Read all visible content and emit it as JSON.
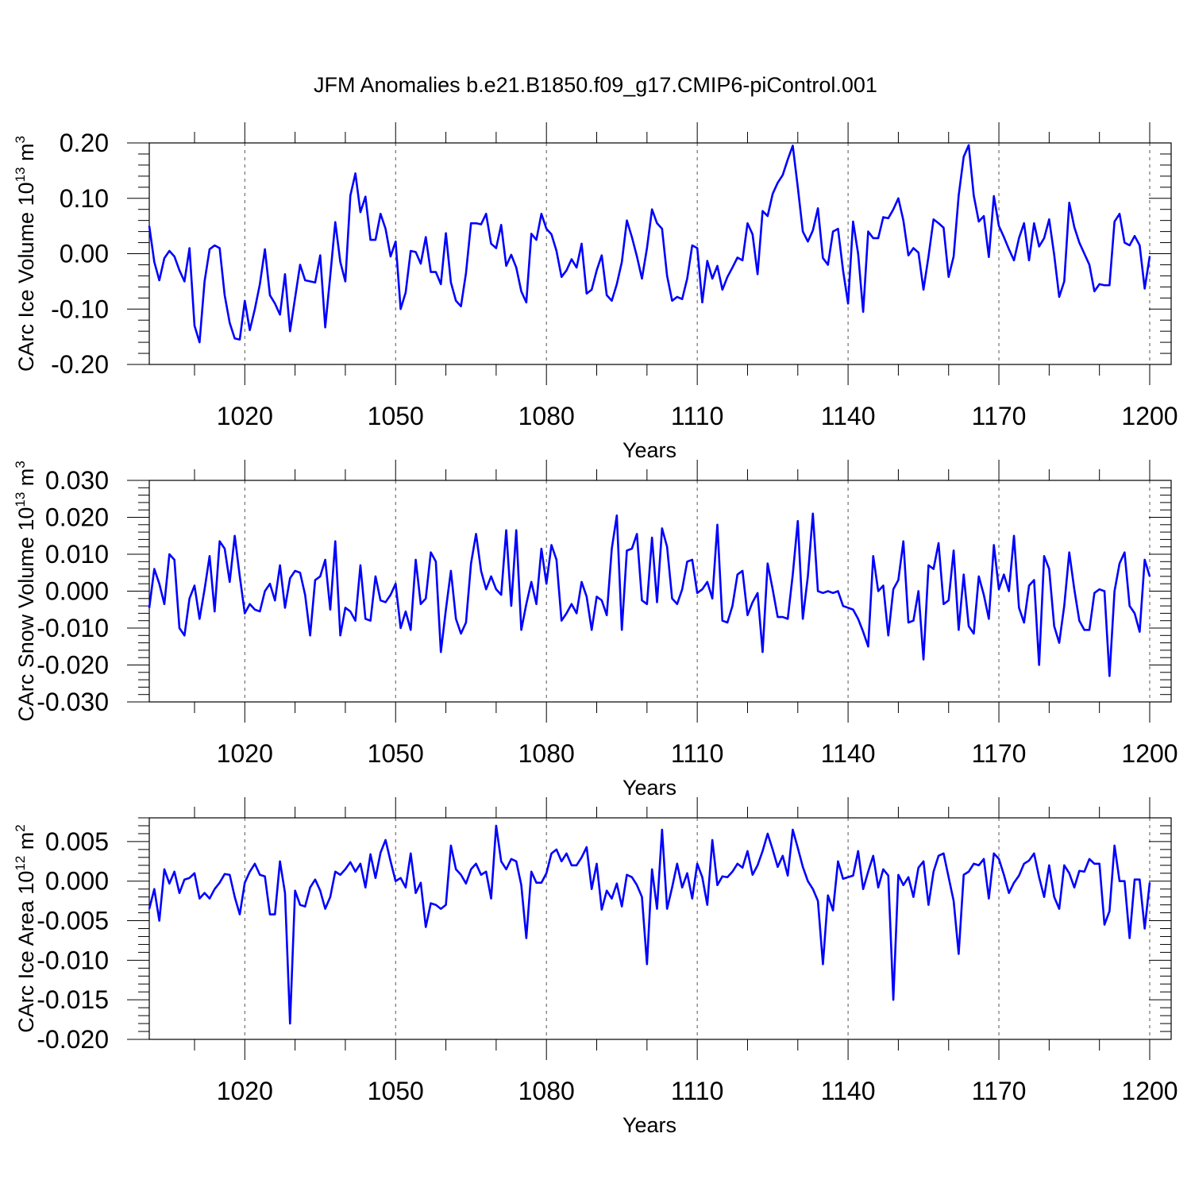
{
  "title": "JFM Anomalies b.e21.B1850.f09_g17.CMIP6-piControl.001",
  "colors": {
    "series": "#0000ff",
    "axis": "#000000",
    "grid": "#555555"
  },
  "chart_data": [
    {
      "type": "line",
      "title": "JFM Anomalies b.e21.B1850.f09_g17.CMIP6-piControl.001",
      "xlabel": "Years",
      "ylabel": "CArc Ice Volume 10",
      "ylabel_exp": "13",
      "ylabel_unit": " m",
      "ylabel_unit_exp": "3",
      "xlim": [
        1001,
        1200
      ],
      "ylim": [
        -0.2,
        0.2
      ],
      "x_ticks": [
        "1020",
        "1050",
        "1080",
        "1110",
        "1140",
        "1170",
        "1200"
      ],
      "y_ticks": [
        "0.20",
        "0.10",
        "0.00",
        "-0.10",
        "-0.20"
      ],
      "grid": "vertical dashed at major x ticks",
      "series": [
        {
          "name": "CArc Ice Volume",
          "start_year": 1001,
          "values": [
            0.05,
            -0.015,
            -0.048,
            -0.008,
            0.005,
            -0.005,
            -0.03,
            -0.05,
            0.01,
            -0.13,
            -0.16,
            -0.05,
            0.008,
            0.015,
            0.01,
            -0.075,
            -0.125,
            -0.153,
            -0.155,
            -0.085,
            -0.138,
            -0.1,
            -0.055,
            0.008,
            -0.075,
            -0.09,
            -0.11,
            -0.037,
            -0.14,
            -0.08,
            -0.02,
            -0.048,
            -0.05,
            -0.052,
            -0.003,
            -0.133,
            -0.04,
            0.057,
            -0.015,
            -0.05,
            0.105,
            0.145,
            0.075,
            0.103,
            0.025,
            0.025,
            0.072,
            0.045,
            -0.005,
            0.022,
            -0.1,
            -0.07,
            0.005,
            0.003,
            -0.018,
            0.03,
            -0.033,
            -0.033,
            -0.055,
            0.037,
            -0.052,
            -0.085,
            -0.095,
            -0.035,
            0.055,
            0.055,
            0.053,
            0.072,
            0.018,
            0.01,
            0.052,
            -0.022,
            -0.002,
            -0.025,
            -0.068,
            -0.088,
            0.036,
            0.025,
            0.072,
            0.045,
            0.035,
            0.005,
            -0.042,
            -0.03,
            -0.01,
            -0.025,
            0.018,
            -0.072,
            -0.065,
            -0.03,
            -0.003,
            -0.075,
            -0.085,
            -0.055,
            -0.015,
            0.06,
            0.03,
            -0.005,
            -0.045,
            0.01,
            0.08,
            0.055,
            0.045,
            -0.04,
            -0.085,
            -0.078,
            -0.082,
            -0.045,
            0.015,
            0.01,
            -0.088,
            -0.013,
            -0.045,
            -0.022,
            -0.065,
            -0.042,
            -0.025,
            -0.007,
            -0.012,
            0.055,
            0.035,
            -0.037,
            0.077,
            0.068,
            0.108,
            0.128,
            0.142,
            0.17,
            0.195,
            0.12,
            0.04,
            0.022,
            0.042,
            0.082,
            -0.008,
            -0.02,
            0.04,
            0.045,
            -0.03,
            -0.09,
            0.058,
            0.0,
            -0.105,
            0.04,
            0.028,
            0.028,
            0.066,
            0.064,
            0.08,
            0.1,
            0.06,
            -0.003,
            0.01,
            0.002,
            -0.065,
            -0.005,
            0.062,
            0.055,
            0.047,
            -0.042,
            -0.005,
            0.105,
            0.175,
            0.196,
            0.105,
            0.058,
            0.068,
            -0.006,
            0.104,
            0.05,
            0.03,
            0.008,
            -0.012,
            0.028,
            0.055,
            -0.012,
            0.055,
            0.013,
            0.028,
            0.062,
            -0.002,
            -0.078,
            -0.05,
            0.092,
            0.048,
            0.02,
            0.0,
            -0.02,
            -0.068,
            -0.055,
            -0.057,
            -0.057,
            0.058,
            0.072,
            0.02,
            0.015,
            0.032,
            0.015,
            -0.063,
            -0.005
          ]
        }
      ]
    },
    {
      "type": "line",
      "xlabel": "Years",
      "ylabel": "CArc Snow Volume 10",
      "ylabel_exp": "13",
      "ylabel_unit": " m",
      "ylabel_unit_exp": "3",
      "xlim": [
        1001,
        1200
      ],
      "ylim": [
        -0.03,
        0.03
      ],
      "x_ticks": [
        "1020",
        "1050",
        "1080",
        "1110",
        "1140",
        "1170",
        "1200"
      ],
      "y_ticks": [
        "0.030",
        "0.020",
        "0.010",
        "0.000",
        "-0.010",
        "-0.020",
        "-0.030"
      ],
      "grid": "vertical dashed at major x ticks",
      "series": [
        {
          "name": "CArc Snow Volume",
          "start_year": 1001,
          "values": [
            -0.0045,
            0.006,
            0.002,
            -0.0035,
            0.01,
            0.0085,
            -0.01,
            -0.012,
            -0.002,
            0.0015,
            -0.0075,
            0.0005,
            0.0095,
            -0.0055,
            0.0135,
            0.0115,
            0.0025,
            0.015,
            0.004,
            -0.006,
            -0.0035,
            -0.005,
            -0.0055,
            0.0,
            0.002,
            -0.0025,
            0.007,
            -0.0045,
            0.0035,
            0.0055,
            0.005,
            -0.001,
            -0.012,
            0.003,
            0.004,
            0.0085,
            -0.005,
            0.0135,
            -0.012,
            -0.0045,
            -0.0055,
            -0.008,
            0.007,
            -0.0075,
            -0.008,
            0.004,
            -0.0025,
            -0.003,
            -0.001,
            0.002,
            -0.01,
            -0.0055,
            -0.0105,
            0.0085,
            -0.0035,
            -0.002,
            0.0105,
            0.008,
            -0.0165,
            -0.005,
            0.0055,
            -0.0075,
            -0.0115,
            -0.0085,
            0.0075,
            0.0155,
            0.0055,
            0.0005,
            0.004,
            0.0005,
            -0.001,
            0.0165,
            -0.004,
            0.0165,
            -0.0105,
            -0.0035,
            0.0025,
            -0.0035,
            0.0115,
            0.002,
            0.0125,
            0.0085,
            -0.008,
            -0.006,
            -0.0035,
            -0.006,
            0.0025,
            -0.0015,
            -0.0105,
            -0.0015,
            -0.0025,
            -0.0065,
            0.0115,
            0.0205,
            -0.0105,
            0.011,
            0.0115,
            0.0155,
            -0.0025,
            -0.0035,
            0.0145,
            -0.003,
            0.017,
            0.012,
            -0.002,
            -0.0035,
            0.0005,
            0.008,
            0.0085,
            -0.0005,
            0.0005,
            0.0025,
            -0.002,
            0.018,
            -0.008,
            -0.0085,
            -0.004,
            0.0045,
            0.0055,
            -0.0065,
            -0.003,
            -0.0005,
            -0.0165,
            0.0075,
            0.0005,
            -0.007,
            -0.007,
            -0.0075,
            0.0045,
            0.019,
            -0.0075,
            0.004,
            0.021,
            0.0,
            -0.0005,
            0.0,
            -0.0005,
            0.0,
            -0.004,
            -0.0045,
            -0.005,
            -0.0075,
            -0.011,
            -0.015,
            0.0095,
            0.0,
            0.0015,
            -0.012,
            0.0005,
            0.003,
            0.0135,
            -0.0085,
            -0.008,
            0.0,
            -0.0185,
            0.007,
            0.006,
            0.013,
            -0.0035,
            -0.0025,
            0.011,
            -0.0105,
            0.0045,
            -0.0095,
            -0.0115,
            0.004,
            -0.001,
            -0.0075,
            0.0125,
            0.0005,
            0.0045,
            0.0,
            0.015,
            -0.0045,
            -0.0085,
            0.0015,
            0.003,
            -0.02,
            0.0095,
            0.006,
            -0.0095,
            -0.014,
            -0.004,
            0.0105,
            0.0005,
            -0.008,
            -0.0105,
            -0.0105,
            -0.0005,
            0.0005,
            0.0,
            -0.023,
            0.0,
            0.0075,
            0.0105,
            -0.004,
            -0.006,
            -0.011,
            0.0085,
            0.004
          ]
        }
      ]
    },
    {
      "type": "line",
      "xlabel": "Years",
      "ylabel": "CArc Ice Area 10",
      "ylabel_exp": "12",
      "ylabel_unit": " m",
      "ylabel_unit_exp": "2",
      "xlim": [
        1001,
        1200
      ],
      "ylim": [
        -0.02,
        0.008
      ],
      "x_ticks": [
        "1020",
        "1050",
        "1080",
        "1110",
        "1140",
        "1170",
        "1200"
      ],
      "y_ticks": [
        "0.005",
        "0.000",
        "-0.005",
        "-0.010",
        "-0.015",
        "-0.020"
      ],
      "grid": "vertical dashed at major x ticks",
      "series": [
        {
          "name": "CArc Ice Area",
          "start_year": 1001,
          "values": [
            -0.0035,
            -0.001,
            -0.005,
            0.0015,
            -0.0003,
            0.0012,
            -0.0015,
            0.0002,
            0.0004,
            0.001,
            -0.0022,
            -0.0015,
            -0.0022,
            -0.001,
            -0.0002,
            0.0009,
            0.0008,
            -0.002,
            -0.0042,
            -0.0002,
            0.0012,
            0.0022,
            0.0008,
            0.0006,
            -0.0042,
            -0.0042,
            0.0025,
            -0.0015,
            -0.018,
            -0.0012,
            -0.003,
            -0.0032,
            -0.0008,
            0.0002,
            -0.0012,
            -0.0035,
            -0.002,
            0.0012,
            0.0008,
            0.0015,
            0.0024,
            0.0012,
            0.0022,
            -0.0008,
            0.0034,
            0.0004,
            0.0036,
            0.0052,
            0.0025,
            0.0,
            0.0004,
            -0.0008,
            0.0035,
            -0.0015,
            -0.0002,
            -0.0058,
            -0.0028,
            -0.003,
            -0.0035,
            -0.003,
            0.0045,
            0.0015,
            0.0008,
            -0.0003,
            0.0015,
            0.0022,
            0.0008,
            0.0012,
            -0.0022,
            0.007,
            0.0025,
            0.0015,
            0.0028,
            0.0025,
            -0.0005,
            -0.0072,
            0.0012,
            -0.0002,
            -0.0002,
            0.001,
            0.0035,
            0.004,
            0.0025,
            0.0035,
            0.002,
            0.002,
            0.003,
            0.0043,
            -0.001,
            0.0022,
            -0.0036,
            -0.0012,
            -0.0022,
            -0.0003,
            -0.0032,
            0.0008,
            0.0005,
            -0.0005,
            -0.002,
            -0.0105,
            0.0015,
            -0.0035,
            0.0065,
            -0.0035,
            -0.0008,
            0.0022,
            -0.0008,
            0.001,
            -0.0022,
            0.0022,
            0.0005,
            -0.003,
            0.0052,
            -0.0005,
            0.0006,
            0.0005,
            0.0012,
            0.0022,
            0.0017,
            0.0038,
            0.0008,
            0.002,
            0.0038,
            0.006,
            0.004,
            0.0018,
            0.0032,
            0.0007,
            0.0065,
            0.0042,
            0.0018,
            0.0,
            -0.001,
            -0.0025,
            -0.0105,
            -0.0018,
            -0.0037,
            0.0025,
            0.0003,
            0.0005,
            0.0007,
            0.0038,
            -0.001,
            0.0012,
            0.0032,
            -0.0008,
            0.0015,
            0.0007,
            -0.015,
            0.0008,
            -0.0005,
            0.0005,
            -0.002,
            0.0017,
            0.0025,
            -0.003,
            0.0012,
            0.0032,
            0.0035,
            0.0005,
            -0.0025,
            -0.0092,
            0.0008,
            0.0012,
            0.0022,
            0.002,
            0.0028,
            -0.0022,
            0.0035,
            0.0028,
            0.0008,
            -0.0015,
            -0.0002,
            0.0007,
            0.0022,
            0.0026,
            0.0035,
            0.0005,
            -0.002,
            0.002,
            -0.002,
            -0.0035,
            0.002,
            0.001,
            -0.0008,
            0.0013,
            0.0012,
            0.0028,
            0.0022,
            0.0022,
            -0.0055,
            -0.0038,
            0.0045,
            0.0,
            0.0,
            -0.0072,
            0.0002,
            0.0002,
            -0.006,
            -0.0002
          ]
        }
      ]
    }
  ]
}
